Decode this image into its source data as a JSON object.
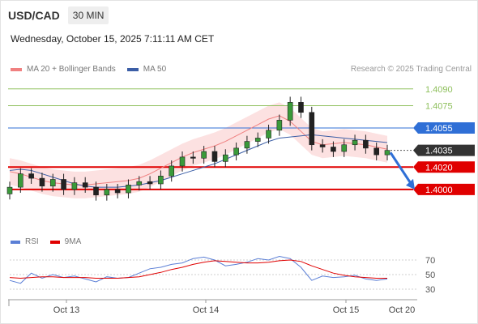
{
  "header": {
    "symbol": "USD/CAD",
    "timeframe": "30 MIN"
  },
  "datetime": "Wednesday, October 15, 2025 7:11:11 AM CET",
  "legend": {
    "ma20_label": "MA 20 + Bollinger Bands",
    "ma50_label": "MA 50",
    "ma20_color": "#f08080",
    "ma50_color": "#3b5ea6"
  },
  "credit": "Research © 2025 Trading Central",
  "rsi_legend": {
    "rsi_label": "RSI",
    "ma9_label": "9MA",
    "rsi_color": "#5b7fd6",
    "ma9_color": "#e00000"
  },
  "chart_data": [
    {
      "type": "candlestick",
      "x_ticks": [
        "Oct 13",
        "Oct 14",
        "Oct 15",
        "Oct 20"
      ],
      "levels": [
        {
          "value": 1.409,
          "label": "1.4090",
          "kind": "target",
          "color": "#8dbf5a"
        },
        {
          "value": 1.4075,
          "label": "1.4075",
          "kind": "target",
          "color": "#8dbf5a"
        },
        {
          "value": 1.4055,
          "label": "1.4055",
          "kind": "pivot",
          "color": "#2f6fd6"
        },
        {
          "value": 1.4035,
          "label": "1.4035",
          "kind": "last",
          "color": "#333333"
        },
        {
          "value": 1.402,
          "label": "1.4020",
          "kind": "support",
          "color": "#e00000"
        },
        {
          "value": 1.4,
          "label": "1.4000",
          "kind": "support",
          "color": "#e00000"
        }
      ],
      "y_range": [
        1.3968,
        1.41
      ],
      "series": [
        {
          "name": "MA 20 + Bollinger Bands",
          "values": [
            1.4016,
            1.4014,
            1.4011,
            1.4008,
            1.4006,
            1.4005,
            1.4004,
            1.4004,
            1.4005,
            1.4006,
            1.4007,
            1.4008,
            1.401,
            1.4014,
            1.4019,
            1.4024,
            1.4029,
            1.4033,
            1.4036,
            1.4039,
            1.4043,
            1.4048,
            1.4053,
            1.4058,
            1.4063,
            1.4066,
            1.4061,
            1.4052,
            1.4043,
            1.404,
            1.4041,
            1.4042,
            1.4041,
            1.404,
            1.4038,
            1.4036
          ]
        },
        {
          "name": "MA 50",
          "values": [
            1.4017,
            1.4018,
            1.4017,
            1.4014,
            1.4011,
            1.4008,
            1.4005,
            1.4003,
            1.4002,
            1.4002,
            1.4002,
            1.4003,
            1.4004,
            1.4006,
            1.4008,
            1.4011,
            1.4014,
            1.4017,
            1.402,
            1.4023,
            1.4027,
            1.4031,
            1.4035,
            1.4039,
            1.4043,
            1.4046,
            1.4047,
            1.4048,
            1.4049,
            1.4048,
            1.4047,
            1.4046,
            1.4045,
            1.4044,
            1.4043,
            1.4042
          ]
        }
      ],
      "candles": [
        1.4002,
        1.4014,
        1.401,
        1.4003,
        1.4009,
        1.4,
        1.4006,
        1.4002,
        1.3995,
        1.4,
        1.3997,
        1.4004,
        1.4007,
        1.4005,
        1.4012,
        1.4021,
        1.4029,
        1.4028,
        1.4034,
        1.4025,
        1.4031,
        1.4037,
        1.4043,
        1.4046,
        1.4053,
        1.4062,
        1.4078,
        1.4069,
        1.404,
        1.4038,
        1.4034,
        1.404,
        1.4044,
        1.4037,
        1.4031,
        1.4035
      ],
      "forecast": {
        "from": 1.4033,
        "to": 1.4,
        "color": "#2f6fd6"
      }
    },
    {
      "type": "line",
      "name": "RSI",
      "y_ticks": [
        "70",
        "50",
        "30"
      ],
      "y_range": [
        20,
        80
      ],
      "series": [
        {
          "name": "RSI",
          "values": [
            42,
            38,
            52,
            45,
            50,
            46,
            48,
            44,
            40,
            47,
            45,
            46,
            52,
            58,
            60,
            64,
            66,
            72,
            74,
            70,
            62,
            64,
            67,
            72,
            70,
            75,
            72,
            60,
            42,
            48,
            46,
            47,
            49,
            44,
            42,
            44
          ]
        },
        {
          "name": "9MA",
          "values": [
            46,
            45,
            46,
            47,
            47,
            46,
            46,
            46,
            45,
            45,
            45,
            46,
            47,
            50,
            53,
            57,
            60,
            64,
            67,
            69,
            68,
            67,
            66,
            66,
            67,
            69,
            70,
            68,
            62,
            57,
            52,
            49,
            47,
            46,
            45,
            45
          ]
        }
      ]
    }
  ]
}
